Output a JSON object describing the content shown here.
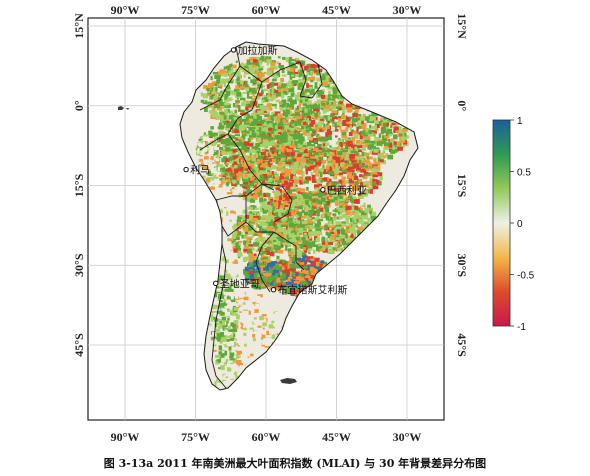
{
  "caption": "图 3-13a 2011 年南美洲最大叶面积指数 (MLAI) 与 30 年背景差异分布图",
  "axes": {
    "lon_ticks": [
      "90°W",
      "75°W",
      "60°W",
      "45°W",
      "30°W"
    ],
    "lat_ticks": [
      "15°N",
      "0°",
      "15°S",
      "30°S",
      "45°S"
    ]
  },
  "cities": [
    {
      "name": "加拉加斯",
      "lon": -66.9,
      "lat": 10.5
    },
    {
      "name": "利马",
      "lon": -77.0,
      "lat": -12.0
    },
    {
      "name": "巴西利亚",
      "lon": -47.9,
      "lat": -15.8
    },
    {
      "name": "圣地亚哥",
      "lon": -70.7,
      "lat": -33.4
    },
    {
      "name": "布宜诺斯艾利斯",
      "lon": -58.4,
      "lat": -34.6
    }
  ],
  "colorbar": {
    "min": -1,
    "max": 1,
    "tick_labels": [
      "1",
      "0.5",
      "0",
      "-0.5",
      "-1"
    ],
    "tick_values": [
      1,
      0.5,
      0,
      -0.5,
      -1
    ],
    "colors": [
      "#1a5e9e",
      "#2f9a52",
      "#93c95a",
      "#eef0e6",
      "#f3b84a",
      "#dd4b2c",
      "#c9184a"
    ]
  },
  "map_colors": {
    "frame": "#222222",
    "grid": "#c8c8c8",
    "land_base": "#eeeadf",
    "green": "#5ea83a",
    "light_green": "#a9d16a",
    "orange": "#ee9a3c",
    "red": "#d9402c",
    "border": "#1a1a1a"
  }
}
